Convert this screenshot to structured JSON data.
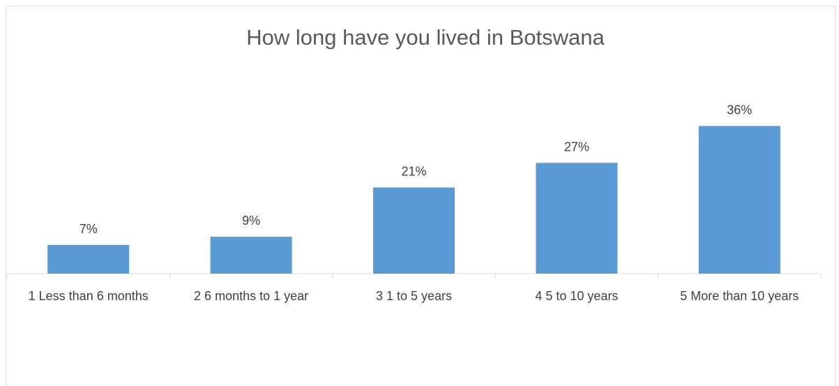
{
  "chart_data": {
    "type": "bar",
    "title": "How long have you lived in Botswana",
    "categories": [
      "1 Less than 6 months",
      "2 6 months to 1 year",
      "3 1 to 5 years",
      "4 5 to 10 years",
      "5 More than 10 years"
    ],
    "values": [
      7,
      9,
      21,
      27,
      36
    ],
    "data_labels": [
      "7%",
      "9%",
      "21%",
      "27%",
      "36%"
    ],
    "value_unit": "%",
    "bar_color": "#5b9bd5",
    "axis_color": "#d9d9d9",
    "grid": false,
    "legend": "none"
  }
}
